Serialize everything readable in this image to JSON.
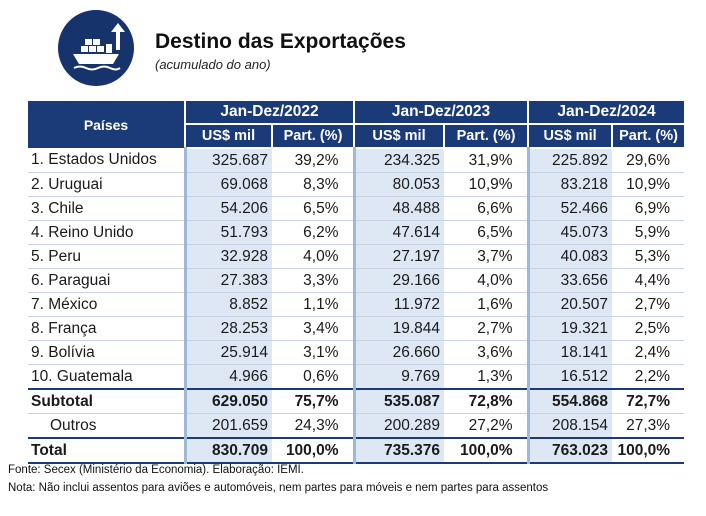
{
  "header": {
    "title": "Destino das Exportações",
    "subtitle": "(acumulado do ano)",
    "logo_icon": "cargo-ship-export-icon",
    "brand_color": "#1a3a78"
  },
  "table": {
    "country_header": "Países",
    "periods": [
      "Jan-Dez/2022",
      "Jan-Dez/2023",
      "Jan-Dez/2024"
    ],
    "col_value": "US$ mil",
    "col_share": "Part. (%)",
    "rows": [
      {
        "country": "1. Estados Unidos",
        "cells": [
          "325.687",
          "39,2%",
          "234.325",
          "31,9%",
          "225.892",
          "29,6%"
        ]
      },
      {
        "country": "2. Uruguai",
        "cells": [
          "69.068",
          "8,3%",
          "80.053",
          "10,9%",
          "83.218",
          "10,9%"
        ]
      },
      {
        "country": "3. Chile",
        "cells": [
          "54.206",
          "6,5%",
          "48.488",
          "6,6%",
          "52.466",
          "6,9%"
        ]
      },
      {
        "country": "4. Reino Unido",
        "cells": [
          "51.793",
          "6,2%",
          "47.614",
          "6,5%",
          "45.073",
          "5,9%"
        ]
      },
      {
        "country": "5. Peru",
        "cells": [
          "32.928",
          "4,0%",
          "27.197",
          "3,7%",
          "40.083",
          "5,3%"
        ]
      },
      {
        "country": "6. Paraguai",
        "cells": [
          "27.383",
          "3,3%",
          "29.166",
          "4,0%",
          "33.656",
          "4,4%"
        ]
      },
      {
        "country": "7. México",
        "cells": [
          "8.852",
          "1,1%",
          "11.972",
          "1,6%",
          "20.507",
          "2,7%"
        ]
      },
      {
        "country": "8. França",
        "cells": [
          "28.253",
          "3,4%",
          "19.844",
          "2,7%",
          "19.321",
          "2,5%"
        ]
      },
      {
        "country": "9. Bolívia",
        "cells": [
          "25.914",
          "3,1%",
          "26.660",
          "3,6%",
          "18.141",
          "2,4%"
        ]
      },
      {
        "country": "10. Guatemala",
        "cells": [
          "4.966",
          "0,6%",
          "9.769",
          "1,3%",
          "16.512",
          "2,2%"
        ]
      }
    ],
    "subtotal": {
      "label": "Subtotal",
      "cells": [
        "629.050",
        "75,7%",
        "535.087",
        "72,8%",
        "554.868",
        "72,7%"
      ]
    },
    "others": {
      "label": "Outros",
      "cells": [
        "201.659",
        "24,3%",
        "200.289",
        "27,2%",
        "208.154",
        "27,3%"
      ]
    },
    "total": {
      "label": "Total",
      "cells": [
        "830.709",
        "100,0%",
        "735.376",
        "100,0%",
        "763.023",
        "100,0%"
      ]
    }
  },
  "footer": {
    "source": "Fonte: Secex (Ministério da Economia). Elaboração: IEMI.",
    "note": "Nota: Não inclui assentos para aviões e automóveis, nem partes para móveis e nem partes para assentos"
  }
}
